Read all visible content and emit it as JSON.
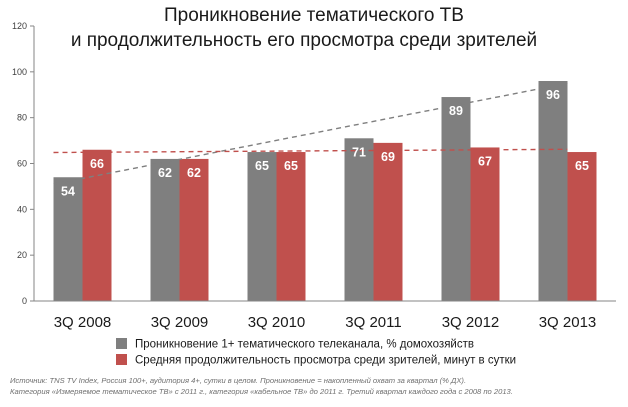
{
  "chart_data": {
    "type": "bar",
    "title_lines": [
      "Проникновение тематического ТВ",
      "и продолжительность его просмотра среди зрителей"
    ],
    "categories": [
      "3Q 2008",
      "3Q 2009",
      "3Q 2010",
      "3Q 2011",
      "3Q 2012",
      "3Q 2013"
    ],
    "series": [
      {
        "name": "Проникновение 1+ тематического телеканала, % домохозяйств",
        "values": [
          54,
          62,
          65,
          71,
          89,
          96
        ],
        "labels": [
          "54",
          "62",
          "65",
          "71",
          "89",
          "96"
        ],
        "color": "#7f7f7f",
        "trendline": {
          "color": "#7f7f7f",
          "start": 51,
          "end": 95
        }
      },
      {
        "name": "Средняя продолжительность просмотра среди зрителей, минут в сутки",
        "values": [
          66,
          62,
          65,
          69,
          67,
          65
        ],
        "labels": [
          "66",
          "62",
          "65",
          "69",
          "67",
          "65"
        ],
        "color": "#c0504d",
        "trendline": {
          "color": "#c0504d",
          "start": 64.8,
          "end": 66.2
        }
      }
    ],
    "ylim": [
      0,
      120
    ],
    "yticks": [
      0,
      20,
      40,
      60,
      80,
      100,
      120
    ],
    "ytick_labels": [
      "0",
      "20",
      "40",
      "60",
      "80",
      "100",
      "120"
    ],
    "grid": false,
    "legend_position": "bottom"
  },
  "footnote": {
    "line1": "Источник: TNS TV Index, Россия 100+,  аудитория 4+,  сутки в целом.  Проникновение = накопленный охват за квартал (% ДХ).",
    "line2": "Категория «Измеряемое тематическое ТВ» с 2011 г., категория «кабельное ТВ» до 2011 г. Третий квартал каждого года с 2008 по 2013."
  }
}
